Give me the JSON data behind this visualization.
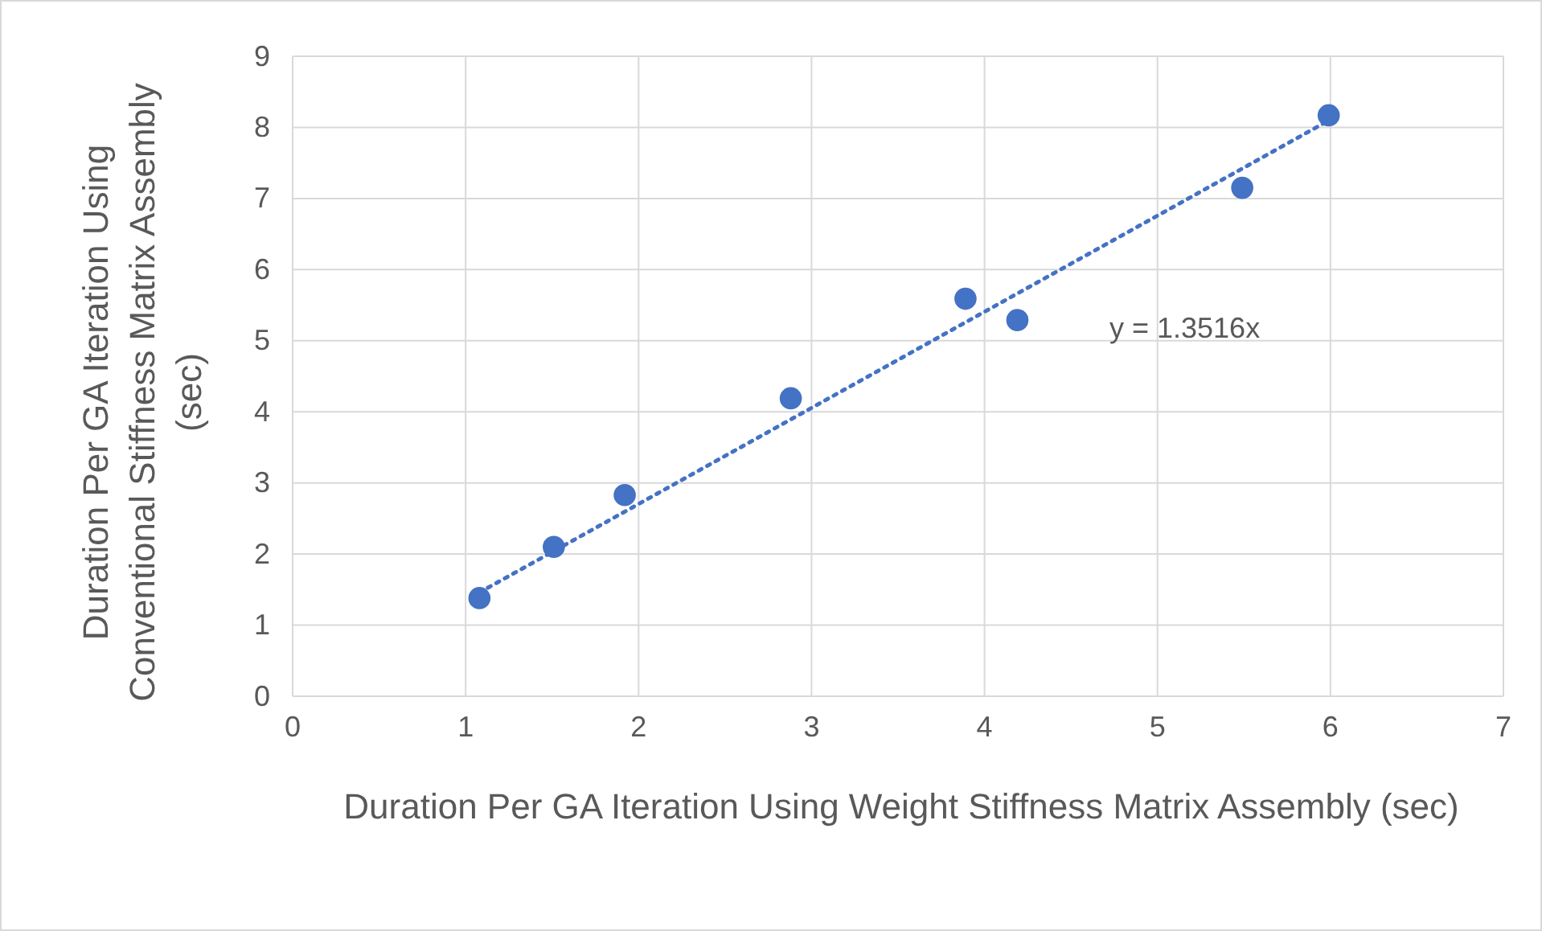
{
  "chart_data": {
    "type": "scatter",
    "xlabel": "Duration Per GA Iteration Using Weight Stiffness Matrix Assembly (sec)",
    "ylabel": "Duration Per GA Iteration Using Conventional Stiffness Matrix Assembly (sec)",
    "xlim": [
      0,
      7
    ],
    "xticks": [
      0,
      1,
      2,
      3,
      4,
      5,
      6,
      7
    ],
    "ylim": [
      0,
      9
    ],
    "yticks": [
      0,
      1,
      2,
      3,
      4,
      5,
      6,
      7,
      8,
      9
    ],
    "grid": true,
    "series": [
      {
        "color": "#4472c4",
        "marker": "circle",
        "x": [
          1.08,
          1.51,
          1.92,
          2.88,
          3.89,
          4.19,
          5.49,
          5.99
        ],
        "values": [
          1.38,
          2.1,
          2.83,
          4.19,
          5.59,
          5.29,
          7.15,
          8.17
        ]
      },
      {
        "type": "line",
        "color": "#4472c4",
        "marker": "none",
        "line_style": "dotted",
        "x": [
          1.08,
          6
        ],
        "values": [
          1.46,
          8.11
        ]
      }
    ],
    "annotations": [
      "y = 1.3516x"
    ]
  }
}
